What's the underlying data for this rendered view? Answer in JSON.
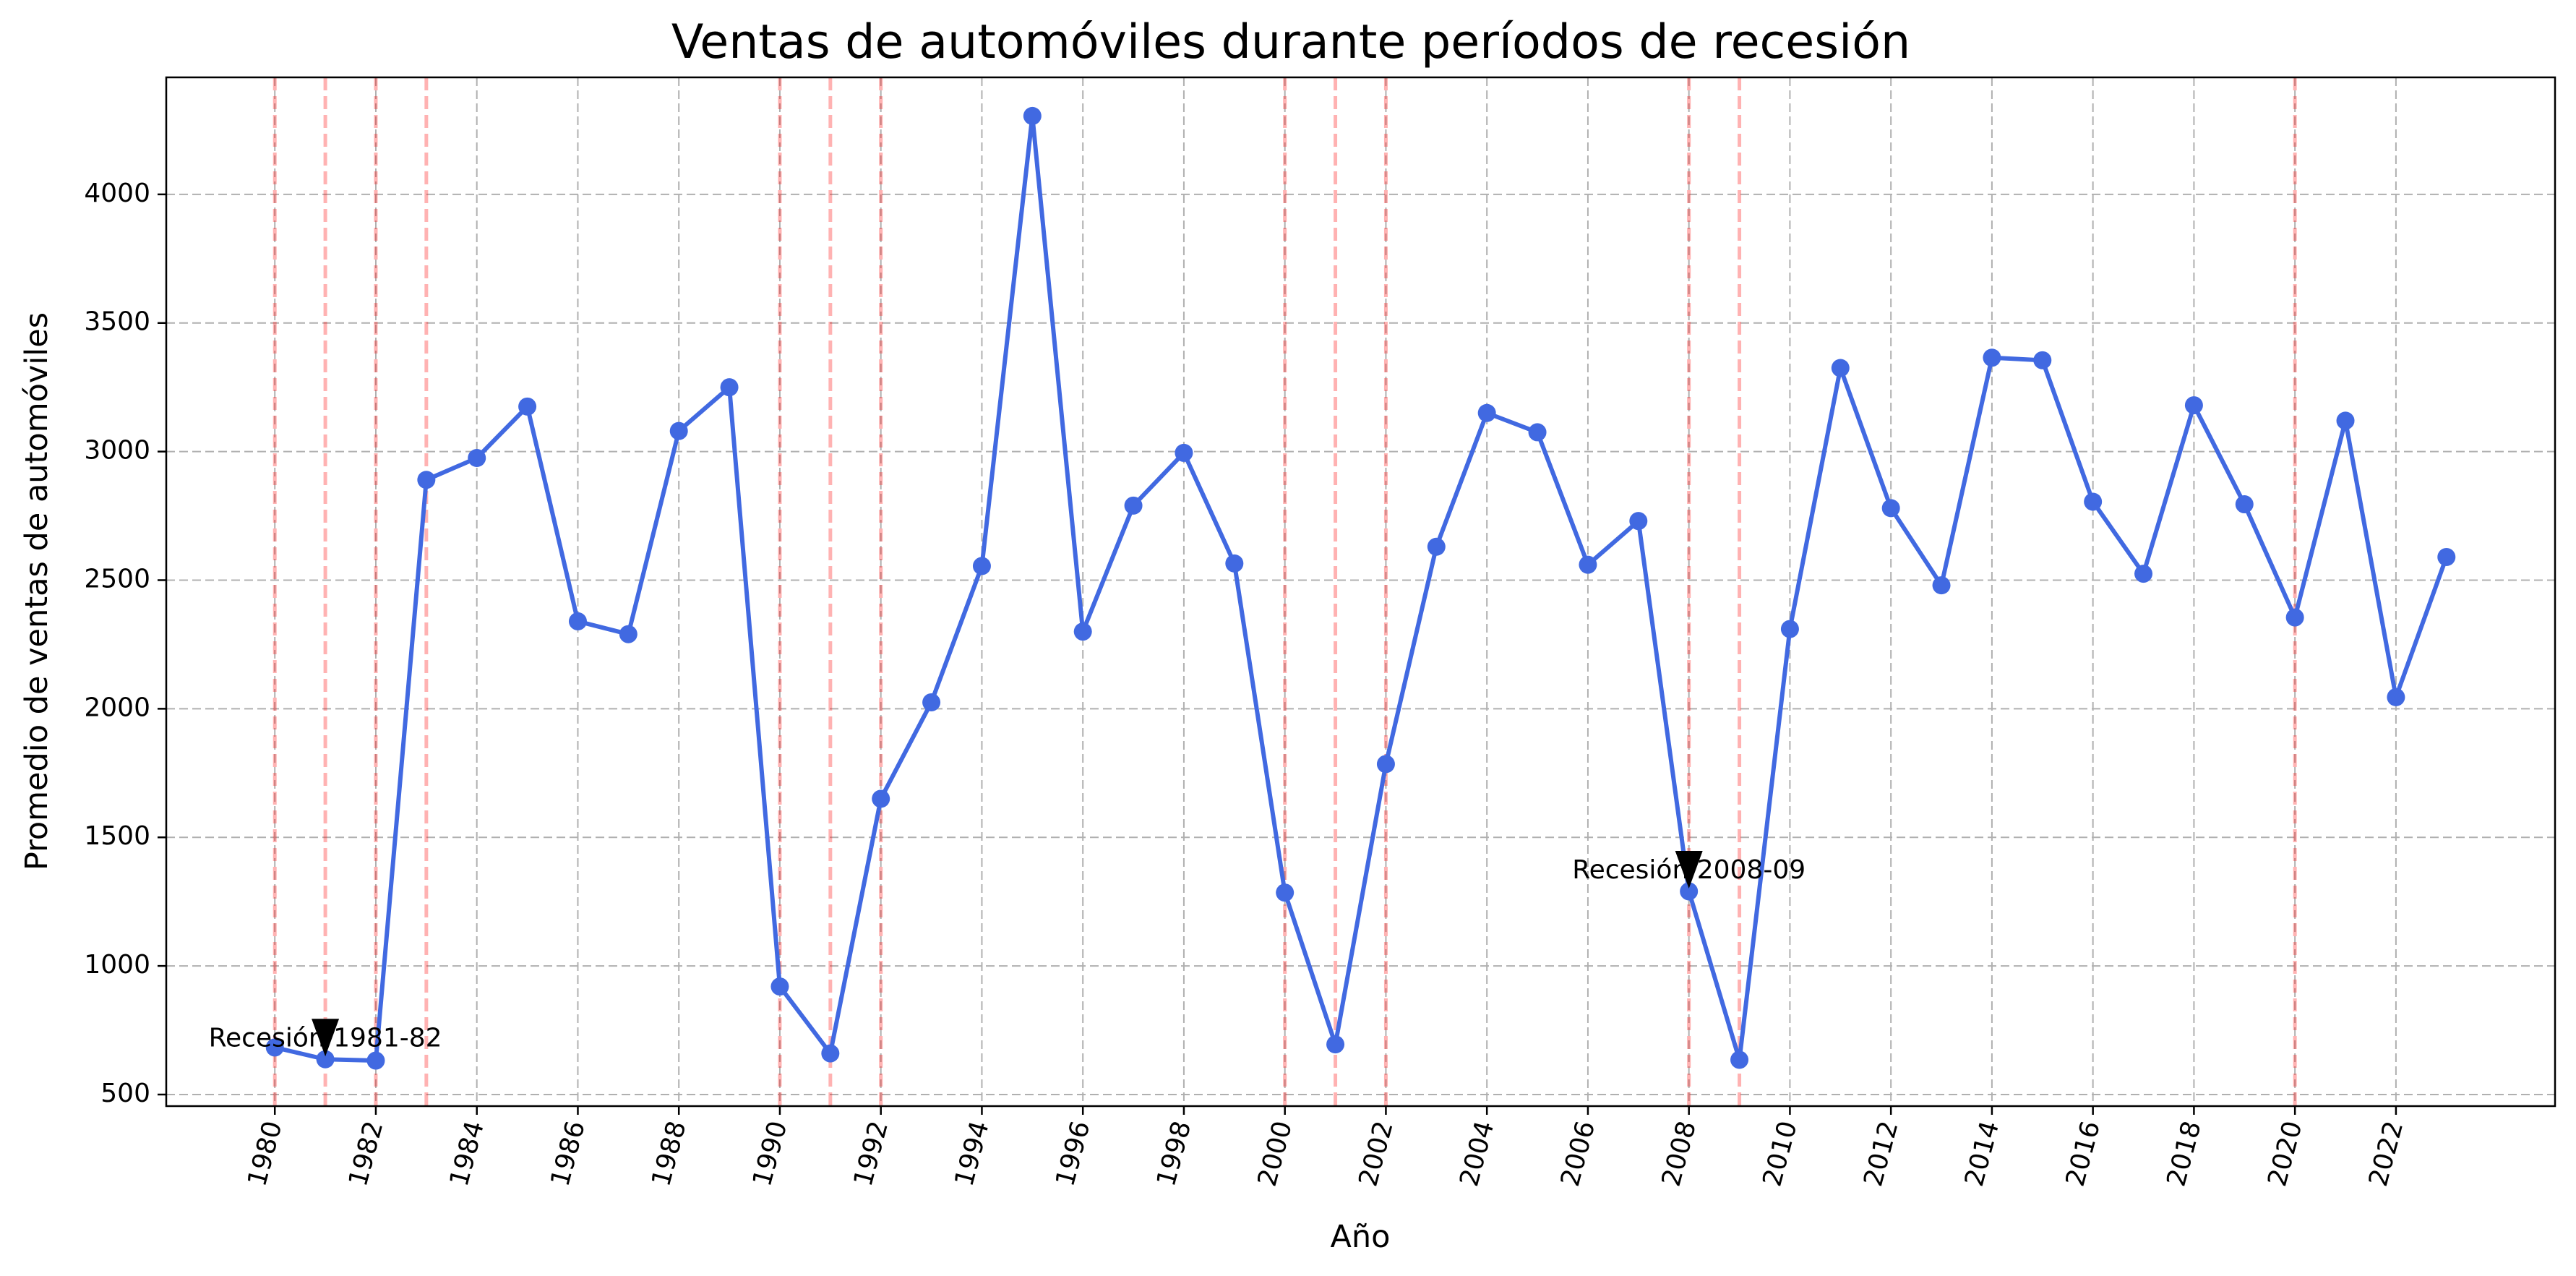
{
  "chart_data": {
    "type": "line",
    "title": "Ventas de automóviles durante períodos de recesión",
    "xlabel": "Año",
    "ylabel": "Promedio de ventas de automóviles",
    "xlim": [
      1977.85,
      2025.15
    ],
    "ylim": [
      455,
      4455
    ],
    "x_ticks": [
      1980,
      1982,
      1984,
      1986,
      1988,
      1990,
      1992,
      1994,
      1996,
      1998,
      2000,
      2002,
      2004,
      2006,
      2008,
      2010,
      2012,
      2014,
      2016,
      2018,
      2020,
      2022
    ],
    "y_ticks": [
      500,
      1000,
      1500,
      2000,
      2500,
      3000,
      3500,
      4000
    ],
    "x_tick_rotation_deg": 75,
    "grid": true,
    "grid_style": "dashed",
    "series": [
      {
        "color": "#4169e1",
        "marker": "circle",
        "x": [
          1980,
          1981,
          1982,
          1983,
          1984,
          1985,
          1986,
          1987,
          1988,
          1989,
          1990,
          1991,
          1992,
          1993,
          1994,
          1995,
          1996,
          1997,
          1998,
          1999,
          2000,
          2001,
          2002,
          2003,
          2004,
          2005,
          2006,
          2007,
          2008,
          2009,
          2010,
          2011,
          2012,
          2013,
          2014,
          2015,
          2016,
          2017,
          2018,
          2019,
          2020,
          2021,
          2022,
          2023
        ],
        "y": [
          683,
          637,
          632,
          2890,
          2975,
          3175,
          2340,
          2290,
          3080,
          3250,
          920,
          660,
          1650,
          2025,
          2555,
          4305,
          2300,
          2790,
          2995,
          2565,
          1285,
          695,
          1785,
          2630,
          3150,
          3075,
          2560,
          2730,
          1290,
          635,
          2310,
          3325,
          2780,
          2480,
          3365,
          3355,
          2805,
          2525,
          3180,
          2795,
          2355,
          3120,
          2045,
          2590
        ]
      }
    ],
    "recession_lines": {
      "color": "#ff0000",
      "style": "dashed",
      "years": [
        1980,
        1981,
        1982,
        1983,
        1990,
        1991,
        1992,
        2000,
        2001,
        2002,
        2008,
        2009,
        2020
      ]
    },
    "annotations": [
      {
        "text": "Recesión 1981-82",
        "arrow_x": 1981,
        "arrow_y": 637
      },
      {
        "text": "Recesión 2008-09",
        "arrow_x": 2008,
        "arrow_y": 1290
      }
    ]
  }
}
